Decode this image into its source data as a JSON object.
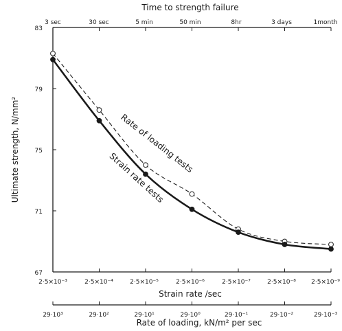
{
  "chart_data": {
    "type": "line",
    "top_axis_title": "Time to strength failure",
    "top_ticks": [
      "3 sec",
      "30 sec",
      "5 min",
      "50 min",
      "8hr",
      "3 days",
      "1month"
    ],
    "ylabel": "Ultimate strength,  N/mm²",
    "yticks": [
      "83",
      "79",
      "75",
      "71",
      "67"
    ],
    "ylim": [
      67,
      83
    ],
    "xlabel": "Strain rate /sec",
    "x_ticks": [
      "2·5×10⁻³",
      "2·5×10⁻⁴",
      "2·5×10⁻⁵",
      "2·5×10⁻⁶",
      "2·5×10⁻⁷",
      "2·5×10⁻⁸",
      "2·5×10⁻⁹"
    ],
    "xlabel2": "Rate of loading,  kN/m² per sec",
    "x2_ticks": [
      "29·10³",
      "29·10²",
      "29·10¹",
      "29·10⁰",
      "29·10⁻¹",
      "29·10⁻²",
      "29·10⁻³"
    ],
    "grid": false,
    "series": [
      {
        "name": "Rate of loading tests",
        "marker": "open-circle",
        "line": "dashed",
        "x_index": [
          0,
          1,
          2,
          3,
          4,
          5,
          6
        ],
        "values": [
          81.3,
          77.6,
          74.0,
          72.1,
          69.8,
          69.0,
          68.8
        ]
      },
      {
        "name": "Strain rate tests",
        "marker": "filled-circle",
        "line": "solid",
        "x_index": [
          0,
          1,
          2,
          3,
          4,
          5,
          6
        ],
        "values": [
          80.9,
          76.9,
          73.4,
          71.1,
          69.6,
          68.8,
          68.5
        ]
      }
    ],
    "colors": {
      "ink": "#1a1a1a",
      "background": "#ffffff"
    }
  }
}
